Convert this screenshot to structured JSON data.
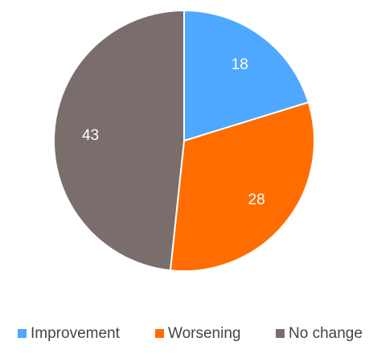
{
  "chart_data": {
    "type": "pie",
    "categories": [
      "Improvement",
      "Worsening",
      "No change"
    ],
    "values": [
      18,
      28,
      43
    ],
    "colors": [
      "#4ea8ff",
      "#ff6d00",
      "#7a6e6c"
    ],
    "legend": "bottom"
  }
}
